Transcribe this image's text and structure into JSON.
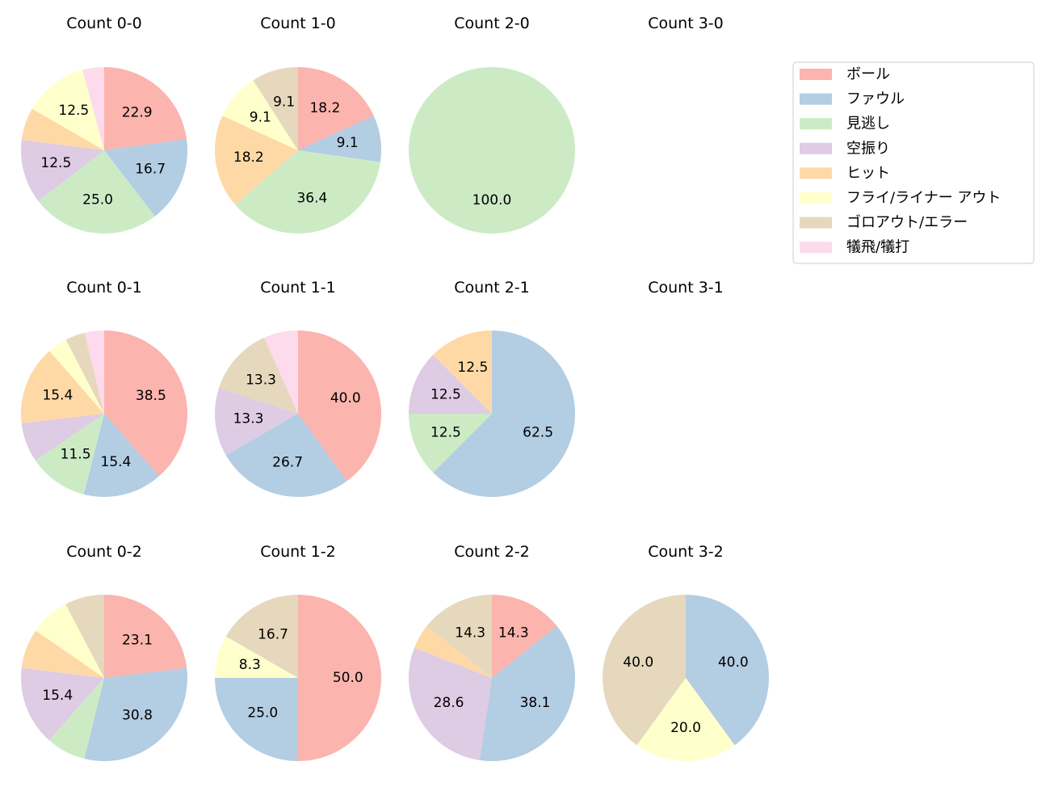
{
  "chart_data": {
    "type": "pie",
    "categories": [
      "ボール",
      "ファウル",
      "見逃し",
      "空振り",
      "ヒット",
      "フライ/ライナー アウト",
      "ゴロアウト/エラー",
      "犠飛/犠打"
    ],
    "colors": [
      "#fbb4ae",
      "#b3cde3",
      "#ccebc5",
      "#decbe4",
      "#fed9a6",
      "#ffffcc",
      "#e5d8bd",
      "#fddaec"
    ],
    "start_angle": "top",
    "direction": "clockwise",
    "legend_position": "right",
    "charts": [
      {
        "title": "Count 0-0",
        "values": [
          22.9,
          16.7,
          25.0,
          12.5,
          6.3,
          12.5,
          0,
          4.2
        ]
      },
      {
        "title": "Count 1-0",
        "values": [
          18.2,
          9.1,
          36.4,
          0,
          18.2,
          9.1,
          9.1,
          0
        ]
      },
      {
        "title": "Count 2-0",
        "values": [
          0,
          0,
          100.0,
          0,
          0,
          0,
          0,
          0
        ]
      },
      {
        "title": "Count 3-0",
        "values": []
      },
      {
        "title": "Count 0-1",
        "values": [
          38.5,
          15.4,
          11.5,
          7.7,
          15.4,
          3.8,
          3.8,
          3.8
        ]
      },
      {
        "title": "Count 1-1",
        "values": [
          40.0,
          26.7,
          0,
          13.3,
          0,
          0,
          13.3,
          6.7
        ]
      },
      {
        "title": "Count 2-1",
        "values": [
          0,
          62.5,
          12.5,
          12.5,
          12.5,
          0,
          0,
          0
        ]
      },
      {
        "title": "Count 3-1",
        "values": []
      },
      {
        "title": "Count 0-2",
        "values": [
          23.1,
          30.8,
          7.7,
          15.4,
          7.7,
          7.7,
          7.7,
          0
        ]
      },
      {
        "title": "Count 1-2",
        "values": [
          50.0,
          25.0,
          0,
          0,
          0,
          8.3,
          16.7,
          0
        ]
      },
      {
        "title": "Count 2-2",
        "values": [
          14.3,
          38.1,
          0,
          28.6,
          4.8,
          0,
          14.3,
          0
        ]
      },
      {
        "title": "Count 3-2",
        "values": [
          0,
          40.0,
          0,
          0,
          0,
          20.0,
          40.0,
          0
        ]
      }
    ]
  }
}
